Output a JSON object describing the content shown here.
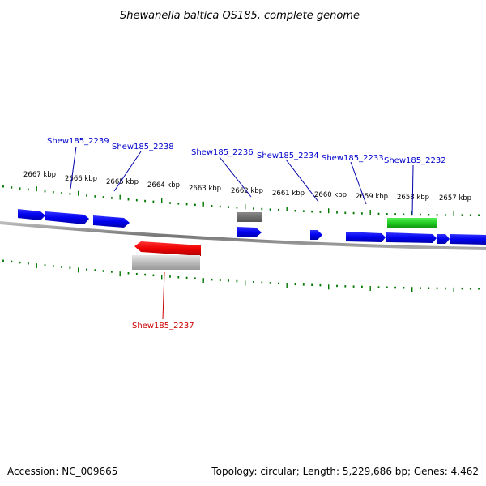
{
  "title": "Shewanella baltica OS185, complete genome",
  "footer": {
    "accession": "Accession: NC_009665",
    "summary": "Topology: circular; Length: 5,229,686 bp; Genes: 4,462"
  },
  "colors": {
    "forward_cds": "#0000ee",
    "selected_gene": "#ee0000",
    "green_feature": "#22cc22",
    "gray_feature": "#666666",
    "ticks": "#007700",
    "backbone": "#888888",
    "gene_label": "#0000cc",
    "selected_label": "#cc0000"
  },
  "scale_labels": [
    {
      "id": "kbp-2667",
      "text": "2667 kbp"
    },
    {
      "id": "kbp-2666",
      "text": "2666 kbp"
    },
    {
      "id": "kbp-2665",
      "text": "2665 kbp"
    },
    {
      "id": "kbp-2664",
      "text": "2664 kbp"
    },
    {
      "id": "kbp-2663",
      "text": "2663 kbp"
    },
    {
      "id": "kbp-2662",
      "text": "2662 kbp"
    },
    {
      "id": "kbp-2661",
      "text": "2661 kbp"
    },
    {
      "id": "kbp-2660",
      "text": "2660 kbp"
    },
    {
      "id": "kbp-2659",
      "text": "2659 kbp"
    },
    {
      "id": "kbp-2658",
      "text": "2658 kbp"
    },
    {
      "id": "kbp-2657",
      "text": "2657 kbp"
    }
  ],
  "gene_labels": [
    {
      "id": "Shew185_2239",
      "text": "Shew185_2239"
    },
    {
      "id": "Shew185_2238",
      "text": "Shew185_2238"
    },
    {
      "id": "Shew185_2236",
      "text": "Shew185_2236"
    },
    {
      "id": "Shew185_2234",
      "text": "Shew185_2234"
    },
    {
      "id": "Shew185_2233",
      "text": "Shew185_2233"
    },
    {
      "id": "Shew185_2232",
      "text": "Shew185_2232"
    },
    {
      "id": "Shew185_2237",
      "text": "Shew185_2237"
    }
  ]
}
